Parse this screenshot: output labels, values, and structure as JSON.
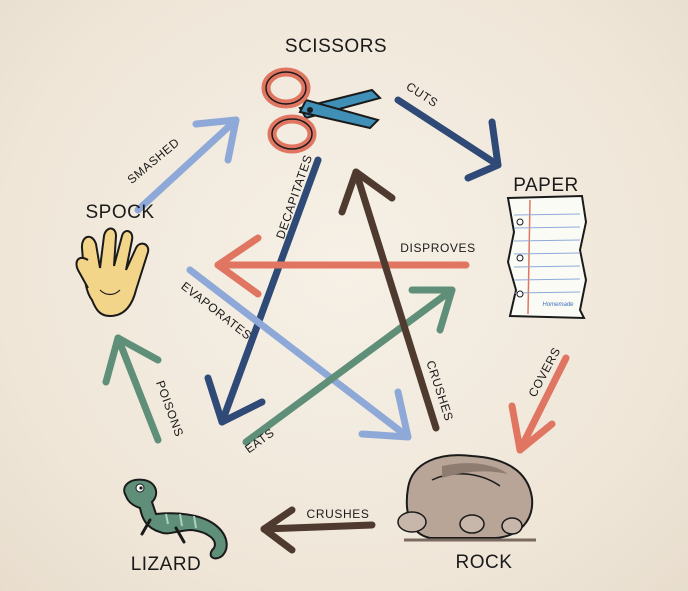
{
  "nodes": {
    "scissors": "SCISSORS",
    "paper": "PAPER",
    "rock": "ROCK",
    "lizard": "LIZARD",
    "spock": "SPOCK"
  },
  "edges": {
    "scissors_paper": "CUTS",
    "paper_rock": "COVERS",
    "rock_lizard": "CRUSHES",
    "lizard_spock": "POISONS",
    "spock_scissors": "SMASHED",
    "scissors_lizard": "DECAPITATES",
    "paper_spock": "DISPROVES",
    "spock_rock": "EVAPORATES",
    "lizard_paper": "EATS",
    "rock_scissors": "CRUSHES"
  },
  "colors": {
    "navy": "#2f4a77",
    "coral": "#e07662",
    "brown": "#4e3a2f",
    "green": "#5f8f78",
    "lightblue": "#8ea9d8"
  },
  "paper_signature": "Homemade"
}
